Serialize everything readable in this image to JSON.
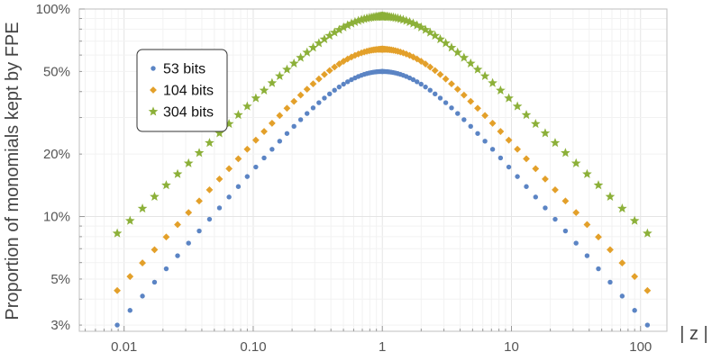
{
  "chart_data": {
    "type": "scatter",
    "title": "",
    "xlabel": "| z |",
    "ylabel": "Proportion of monomials kept by FPE",
    "x_scale": "log",
    "y_scale": "log",
    "xlim": [
      0.0045,
      160
    ],
    "ylim": [
      0.028,
      1.0
    ],
    "x_ticks": [
      {
        "value": 0.01,
        "label": "0.01"
      },
      {
        "value": 0.1,
        "label": "0.10"
      },
      {
        "value": 1,
        "label": "1"
      },
      {
        "value": 10,
        "label": "10"
      },
      {
        "value": 100,
        "label": "100"
      }
    ],
    "y_ticks": [
      {
        "value": 0.03,
        "label": "3%"
      },
      {
        "value": 0.05,
        "label": "5%"
      },
      {
        "value": 0.1,
        "label": "10%"
      },
      {
        "value": 0.2,
        "label": "20%"
      },
      {
        "value": 0.5,
        "label": "50%"
      },
      {
        "value": 1.0,
        "label": "100%"
      }
    ],
    "grid": true,
    "legend_position": "top-left",
    "series": [
      {
        "name": "53 bits",
        "marker": "circle",
        "color": "#5b84c4",
        "peak": 0.5,
        "floor": 0.03
      },
      {
        "name": "104 bits",
        "marker": "diamond",
        "color": "#e3a02a",
        "peak": 0.64,
        "floor": 0.044
      },
      {
        "name": "304 bits",
        "marker": "star",
        "color": "#8cb039",
        "peak": 0.92,
        "floor": 0.083
      }
    ],
    "x_min": 0.0088,
    "x_max": 113,
    "points_per_side": 50
  }
}
